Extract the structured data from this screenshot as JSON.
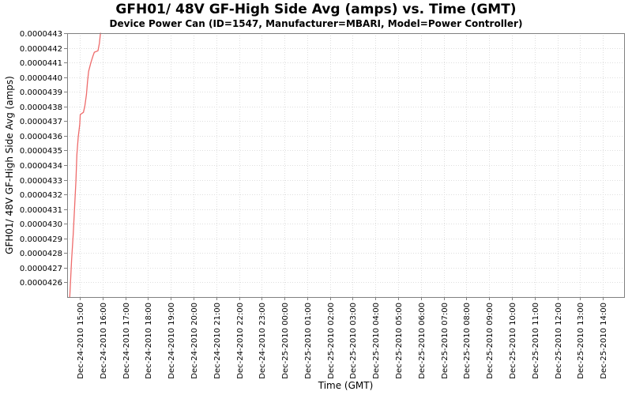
{
  "chart_data": {
    "type": "line",
    "title": "GFH01/ 48V GF-High Side Avg (amps) vs. Time (GMT)",
    "subtitle": "Device Power Can (ID=1547, Manufacturer=MBARI, Model=Power Controller)",
    "xlabel": "Time (GMT)",
    "ylabel": "GFH01/ 48V GF-High Side Avg (amps)",
    "grid": true,
    "legend": "none",
    "x_tick_labels": [
      "Dec-24-2010 15:00",
      "Dec-24-2010 16:00",
      "Dec-24-2010 17:00",
      "Dec-24-2010 18:00",
      "Dec-24-2010 19:00",
      "Dec-24-2010 20:00",
      "Dec-24-2010 21:00",
      "Dec-24-2010 22:00",
      "Dec-24-2010 23:00",
      "Dec-25-2010 00:00",
      "Dec-25-2010 01:00",
      "Dec-25-2010 02:00",
      "Dec-25-2010 03:00",
      "Dec-25-2010 04:00",
      "Dec-25-2010 05:00",
      "Dec-25-2010 06:00",
      "Dec-25-2010 07:00",
      "Dec-25-2010 08:00",
      "Dec-25-2010 09:00",
      "Dec-25-2010 10:00",
      "Dec-25-2010 11:00",
      "Dec-25-2010 12:00",
      "Dec-25-2010 13:00",
      "Dec-25-2010 14:00"
    ],
    "y_tick_labels": [
      "0.0000426",
      "0.0000427",
      "0.0000428",
      "0.0000429",
      "0.0000430",
      "0.0000431",
      "0.0000432",
      "0.0000433",
      "0.0000434",
      "0.0000435",
      "0.0000436",
      "0.0000437",
      "0.0000438",
      "0.0000439",
      "0.0000440",
      "0.0000441",
      "0.0000442",
      "0.0000443"
    ],
    "x_domain_hours_from_first_tick": [
      -0.556,
      23.934
    ],
    "y_domain": [
      4.25e-05,
      4.43e-05
    ],
    "series": [
      {
        "name": "GFH01/ 48V GF-High Side Avg (amps)",
        "color": "#ee6b6b",
        "points_hours_amps": [
          [
            -0.44,
            4.25e-05
          ],
          [
            -0.36,
            4.275e-05
          ],
          [
            -0.29,
            4.293e-05
          ],
          [
            -0.23,
            4.311e-05
          ],
          [
            -0.17,
            4.329e-05
          ],
          [
            -0.13,
            4.347e-05
          ],
          [
            -0.07,
            4.359e-05
          ],
          [
            0.0,
            4.368e-05
          ],
          [
            0.02,
            4.3745e-05
          ],
          [
            0.16,
            4.376e-05
          ],
          [
            0.22,
            4.38e-05
          ],
          [
            0.29,
            4.388e-05
          ],
          [
            0.34,
            4.397e-05
          ],
          [
            0.39,
            4.404e-05
          ],
          [
            0.49,
            4.41e-05
          ],
          [
            0.58,
            4.4145e-05
          ],
          [
            0.64,
            4.417e-05
          ],
          [
            0.8,
            4.418e-05
          ],
          [
            0.86,
            4.423e-05
          ],
          [
            0.91,
            4.43e-05
          ]
        ]
      }
    ],
    "colors": {
      "background": "#ffffff",
      "gridline": "#dedede",
      "axis": "#808080",
      "text": "#000000"
    }
  }
}
